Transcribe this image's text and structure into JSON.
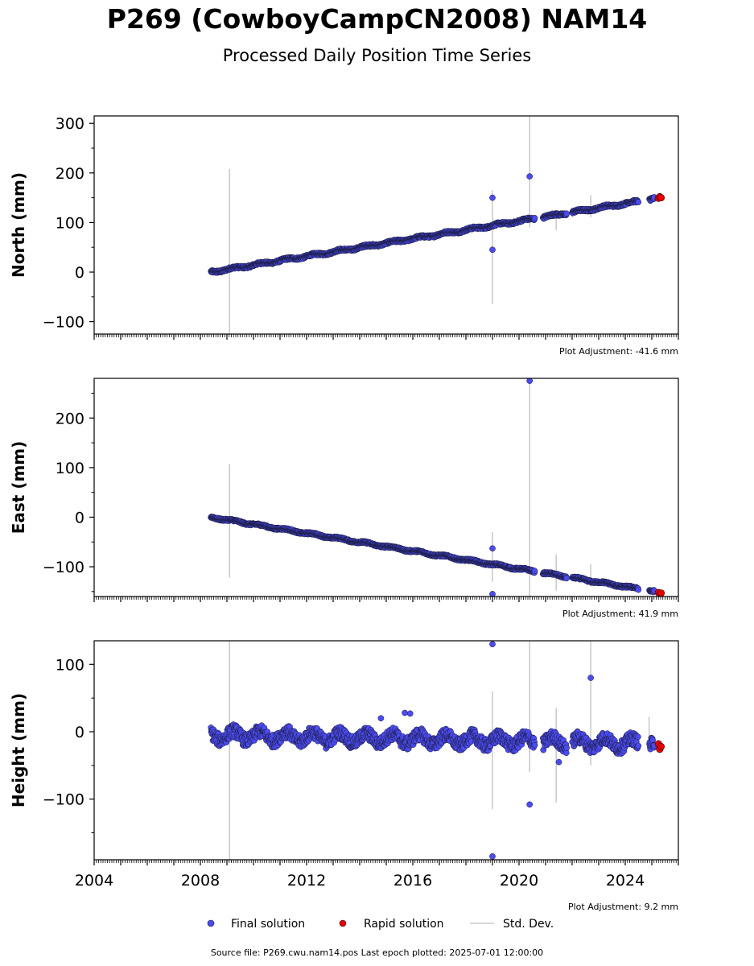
{
  "title": "P269 (CowboyCampCN2008) NAM14",
  "subtitle": "Processed Daily Position Time Series",
  "footer": "Source file: P269.cwu.nam14.pos  Last epoch plotted: 2025-07-01 12:00:00",
  "legend": {
    "final": "Final solution",
    "rapid": "Rapid solution",
    "std": "Std. Dev."
  },
  "colors": {
    "final": "#4b4bf0",
    "rapid": "#e80000",
    "std": "#c8c8c8",
    "marker_edge": "#1a1a3a"
  },
  "chart_data": [
    {
      "type": "scatter",
      "ylabel": "North (mm)",
      "adjustment": "Plot Adjustment: -41.6 mm",
      "xlim": [
        2004,
        2026
      ],
      "ylim": [
        -125,
        315
      ],
      "yticks": [
        -100,
        0,
        100,
        200,
        300
      ],
      "xticks": [
        2004,
        2008,
        2012,
        2016,
        2020,
        2024
      ],
      "show_xtick_labels": false,
      "trend": {
        "x0": 2008.4,
        "y0": 0,
        "x1": 2025.1,
        "y1": 148
      },
      "wobble": 3,
      "gaps": [
        [
          2020.6,
          2020.9
        ],
        [
          2021.8,
          2022.0
        ],
        [
          2024.5,
          2024.9
        ]
      ],
      "outliers": [
        {
          "x": 2019.0,
          "y": 150
        },
        {
          "x": 2019.0,
          "y": 45
        },
        {
          "x": 2020.4,
          "y": 193
        }
      ],
      "stddev_bars": [
        {
          "x": 2009.1,
          "low": -125,
          "high": 208
        },
        {
          "x": 2019.0,
          "low": -65,
          "high": 165
        },
        {
          "x": 2020.4,
          "low": 90,
          "high": 315
        },
        {
          "x": 2021.4,
          "low": 85,
          "high": 125
        },
        {
          "x": 2022.0,
          "low": 110,
          "high": 130
        },
        {
          "x": 2022.7,
          "low": 110,
          "high": 155
        }
      ],
      "rapid": [
        {
          "x": 2025.25,
          "y": 149
        },
        {
          "x": 2025.3,
          "y": 152
        },
        {
          "x": 2025.35,
          "y": 150
        }
      ]
    },
    {
      "type": "scatter",
      "ylabel": "East (mm)",
      "adjustment": "Plot Adjustment: 41.9 mm",
      "xlim": [
        2004,
        2026
      ],
      "ylim": [
        -160,
        280
      ],
      "yticks": [
        -100,
        0,
        100,
        200
      ],
      "xticks": [
        2004,
        2008,
        2012,
        2016,
        2020,
        2024
      ],
      "show_xtick_labels": false,
      "trend": {
        "x0": 2008.4,
        "y0": 0,
        "x1": 2025.1,
        "y1": -150
      },
      "wobble": 2.5,
      "gaps": [
        [
          2020.6,
          2020.9
        ],
        [
          2021.8,
          2022.0
        ],
        [
          2024.5,
          2024.9
        ]
      ],
      "outliers": [
        {
          "x": 2019.0,
          "y": -63
        },
        {
          "x": 2019.0,
          "y": -155
        },
        {
          "x": 2020.4,
          "y": 275
        }
      ],
      "stddev_bars": [
        {
          "x": 2009.1,
          "low": -122,
          "high": 107
        },
        {
          "x": 2019.0,
          "low": -130,
          "high": -30
        },
        {
          "x": 2020.4,
          "low": -160,
          "high": 280
        },
        {
          "x": 2021.4,
          "low": -148,
          "high": -75
        },
        {
          "x": 2022.7,
          "low": -140,
          "high": -95
        }
      ],
      "rapid": [
        {
          "x": 2025.25,
          "y": -152
        },
        {
          "x": 2025.3,
          "y": -155
        },
        {
          "x": 2025.35,
          "y": -153
        }
      ]
    },
    {
      "type": "scatter",
      "ylabel": "Height (mm)",
      "adjustment": "Plot Adjustment: 9.2 mm",
      "xlim": [
        2004,
        2026
      ],
      "ylim": [
        -190,
        135
      ],
      "yticks": [
        -100,
        0,
        100
      ],
      "xticks": [
        2004,
        2008,
        2012,
        2016,
        2020,
        2024
      ],
      "show_xtick_labels": true,
      "trend": {
        "x0": 2008.4,
        "y0": -5,
        "x1": 2025.1,
        "y1": -18
      },
      "wobble": 12,
      "gaps": [
        [
          2020.6,
          2020.9
        ],
        [
          2021.8,
          2022.0
        ],
        [
          2024.5,
          2024.9
        ]
      ],
      "outliers": [
        {
          "x": 2019.0,
          "y": 130
        },
        {
          "x": 2019.0,
          "y": -185
        },
        {
          "x": 2020.4,
          "y": -108
        },
        {
          "x": 2021.5,
          "y": -45
        },
        {
          "x": 2022.7,
          "y": 80
        },
        {
          "x": 2015.7,
          "y": 28
        },
        {
          "x": 2015.9,
          "y": 27
        },
        {
          "x": 2014.8,
          "y": 20
        }
      ],
      "stddev_bars": [
        {
          "x": 2009.1,
          "low": -190,
          "high": 135
        },
        {
          "x": 2019.0,
          "low": -115,
          "high": 60
        },
        {
          "x": 2020.4,
          "low": -60,
          "high": 135
        },
        {
          "x": 2021.4,
          "low": -105,
          "high": 35
        },
        {
          "x": 2022.7,
          "low": -50,
          "high": 135
        },
        {
          "x": 2024.9,
          "low": -30,
          "high": 22
        }
      ],
      "rapid": [
        {
          "x": 2025.25,
          "y": -18
        },
        {
          "x": 2025.3,
          "y": -26
        },
        {
          "x": 2025.35,
          "y": -22
        }
      ]
    }
  ]
}
